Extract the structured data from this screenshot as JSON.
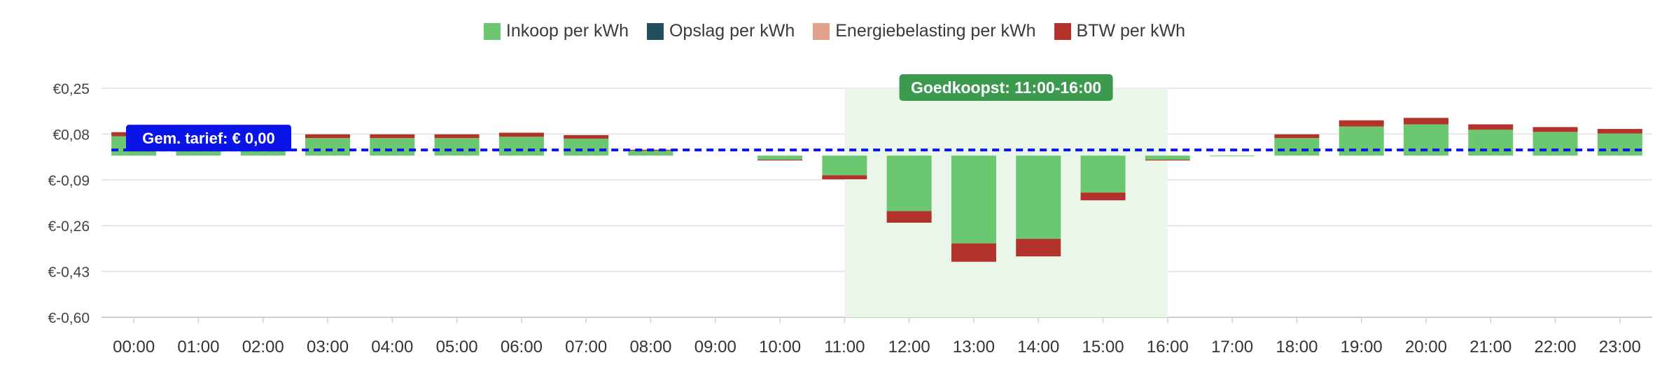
{
  "chart_data": {
    "type": "bar",
    "stacked": true,
    "categories": [
      "00:00",
      "01:00",
      "02:00",
      "03:00",
      "04:00",
      "05:00",
      "06:00",
      "07:00",
      "08:00",
      "09:00",
      "10:00",
      "11:00",
      "12:00",
      "13:00",
      "14:00",
      "15:00",
      "16:00",
      "17:00",
      "18:00",
      "19:00",
      "20:00",
      "21:00",
      "22:00",
      "23:00"
    ],
    "series": [
      {
        "name": "Inkoop per kWh",
        "color": "#6cc870",
        "values": [
          0.072,
          0.068,
          0.065,
          0.065,
          0.065,
          0.065,
          0.07,
          0.063,
          0.018,
          0.0,
          -0.015,
          -0.073,
          -0.206,
          -0.326,
          -0.309,
          -0.137,
          -0.015,
          -0.002,
          0.065,
          0.108,
          0.116,
          0.096,
          0.088,
          0.082
        ]
      },
      {
        "name": "Opslag per kWh",
        "color": "#234e5e",
        "values": [
          0,
          0,
          0,
          0,
          0,
          0,
          0,
          0,
          0,
          0,
          0,
          0,
          0,
          0,
          0,
          0,
          0,
          0,
          0,
          0,
          0,
          0,
          0,
          0
        ]
      },
      {
        "name": "Energiebelasting per kWh",
        "color": "#e3a08a",
        "values": [
          0,
          0,
          0,
          0,
          0,
          0,
          0,
          0,
          0,
          0,
          0,
          0,
          0,
          0,
          0,
          0,
          0,
          0,
          0,
          0,
          0,
          0,
          0,
          0
        ]
      },
      {
        "name": "BTW per kWh",
        "color": "#b3322b",
        "values": [
          0.015,
          0.014,
          0.014,
          0.014,
          0.014,
          0.014,
          0.015,
          0.013,
          0.004,
          0.0,
          -0.003,
          -0.015,
          -0.043,
          -0.068,
          -0.065,
          -0.029,
          -0.003,
          0.0,
          0.014,
          0.023,
          0.024,
          0.02,
          0.018,
          0.017
        ]
      }
    ],
    "ylim": [
      -0.6,
      0.25
    ],
    "yticks": [
      0.25,
      0.08,
      -0.09,
      -0.26,
      -0.43,
      -0.6
    ],
    "ytick_labels": [
      "€0,25",
      "€0,08",
      "€-0,09",
      "€-0,26",
      "€-0,43",
      "€-0,60"
    ],
    "grid": true,
    "legend_position": "top-center",
    "average": {
      "value": 0.0,
      "label": "Gem. tarief: € 0,00",
      "color": "#0a14e6"
    },
    "highlight": {
      "from": "11:00",
      "to": "16:00",
      "label": "Goedkoopst: 11:00-16:00",
      "color": "#3c9a4e"
    }
  }
}
